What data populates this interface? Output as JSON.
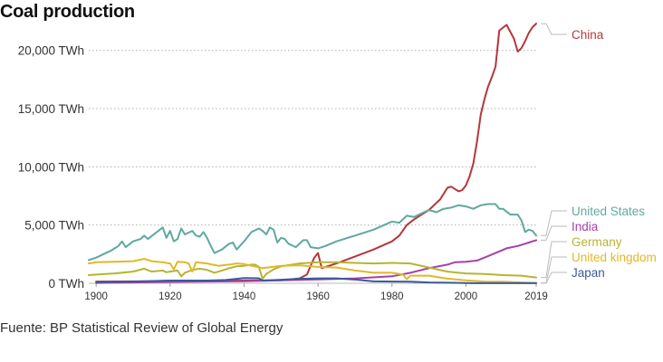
{
  "header": {
    "title": "Coal production"
  },
  "footer": {
    "source": "Fuente: BP Statistical Review of Global Energy"
  },
  "chart_data": {
    "type": "line",
    "title": "Coal production",
    "xlabel": "",
    "ylabel": "",
    "xlim": [
      1898,
      2019
    ],
    "ylim": [
      0,
      22000
    ],
    "grid": true,
    "x_ticks": [
      {
        "value": 1900,
        "label": "1900"
      },
      {
        "value": 1920,
        "label": "1920"
      },
      {
        "value": 1940,
        "label": "1940"
      },
      {
        "value": 1960,
        "label": "1960"
      },
      {
        "value": 1980,
        "label": "1980"
      },
      {
        "value": 2000,
        "label": "2000"
      },
      {
        "value": 2019,
        "label": "2019"
      }
    ],
    "y_ticks": [
      {
        "value": 0,
        "label": "0 TWh"
      },
      {
        "value": 5000,
        "label": "5,000 TWh"
      },
      {
        "value": 10000,
        "label": "10,000 TWh"
      },
      {
        "value": 15000,
        "label": "15,000 TWh"
      },
      {
        "value": 20000,
        "label": "20,000 TWh"
      }
    ],
    "series": [
      {
        "name": "China",
        "color": "#b5363b",
        "points": [
          [
            1900,
            150
          ],
          [
            1920,
            170
          ],
          [
            1940,
            230
          ],
          [
            1950,
            260
          ],
          [
            1955,
            420
          ],
          [
            1957,
            750
          ],
          [
            1958,
            1500
          ],
          [
            1959,
            2200
          ],
          [
            1960,
            2600
          ],
          [
            1961,
            1300
          ],
          [
            1962,
            1400
          ],
          [
            1965,
            1700
          ],
          [
            1970,
            2300
          ],
          [
            1975,
            2900
          ],
          [
            1980,
            3600
          ],
          [
            1982,
            4100
          ],
          [
            1984,
            5000
          ],
          [
            1986,
            5500
          ],
          [
            1990,
            6300
          ],
          [
            1993,
            7200
          ],
          [
            1995,
            8200
          ],
          [
            1996,
            8300
          ],
          [
            1997,
            8100
          ],
          [
            1998,
            7900
          ],
          [
            1999,
            8000
          ],
          [
            2000,
            8400
          ],
          [
            2001,
            9200
          ],
          [
            2002,
            10300
          ],
          [
            2003,
            12200
          ],
          [
            2004,
            14500
          ],
          [
            2005,
            15800
          ],
          [
            2006,
            16900
          ],
          [
            2007,
            17700
          ],
          [
            2008,
            18600
          ],
          [
            2009,
            21700
          ],
          [
            2011,
            22200
          ],
          [
            2013,
            21000
          ],
          [
            2014,
            19900
          ],
          [
            2015,
            20200
          ],
          [
            2016,
            20800
          ],
          [
            2017,
            21500
          ],
          [
            2018,
            22000
          ],
          [
            2019,
            22300
          ]
        ]
      },
      {
        "name": "United States",
        "color": "#5fa8a0",
        "points": [
          [
            1898,
            2000
          ],
          [
            1900,
            2200
          ],
          [
            1902,
            2500
          ],
          [
            1904,
            2800
          ],
          [
            1905,
            3000
          ],
          [
            1906,
            3200
          ],
          [
            1907,
            3600
          ],
          [
            1908,
            3100
          ],
          [
            1910,
            3600
          ],
          [
            1912,
            3800
          ],
          [
            1913,
            4100
          ],
          [
            1914,
            3800
          ],
          [
            1916,
            4300
          ],
          [
            1918,
            4800
          ],
          [
            1919,
            3900
          ],
          [
            1920,
            4500
          ],
          [
            1921,
            3600
          ],
          [
            1922,
            3800
          ],
          [
            1923,
            4700
          ],
          [
            1924,
            4200
          ],
          [
            1926,
            4500
          ],
          [
            1927,
            4100
          ],
          [
            1928,
            4000
          ],
          [
            1929,
            4400
          ],
          [
            1930,
            3900
          ],
          [
            1931,
            3200
          ],
          [
            1932,
            2600
          ],
          [
            1934,
            2900
          ],
          [
            1936,
            3400
          ],
          [
            1937,
            3500
          ],
          [
            1938,
            2900
          ],
          [
            1940,
            3600
          ],
          [
            1942,
            4400
          ],
          [
            1944,
            4700
          ],
          [
            1945,
            4500
          ],
          [
            1946,
            4200
          ],
          [
            1947,
            4800
          ],
          [
            1948,
            4600
          ],
          [
            1949,
            3500
          ],
          [
            1950,
            3900
          ],
          [
            1951,
            3800
          ],
          [
            1952,
            3400
          ],
          [
            1954,
            3100
          ],
          [
            1956,
            3700
          ],
          [
            1957,
            3700
          ],
          [
            1958,
            3100
          ],
          [
            1960,
            3000
          ],
          [
            1962,
            3200
          ],
          [
            1965,
            3600
          ],
          [
            1970,
            4100
          ],
          [
            1975,
            4600
          ],
          [
            1980,
            5300
          ],
          [
            1982,
            5200
          ],
          [
            1984,
            5800
          ],
          [
            1986,
            5700
          ],
          [
            1988,
            6000
          ],
          [
            1990,
            6300
          ],
          [
            1992,
            6100
          ],
          [
            1994,
            6400
          ],
          [
            1996,
            6500
          ],
          [
            1998,
            6700
          ],
          [
            2000,
            6600
          ],
          [
            2002,
            6400
          ],
          [
            2004,
            6700
          ],
          [
            2006,
            6800
          ],
          [
            2008,
            6800
          ],
          [
            2009,
            6400
          ],
          [
            2010,
            6400
          ],
          [
            2012,
            5900
          ],
          [
            2014,
            5900
          ],
          [
            2015,
            5400
          ],
          [
            2016,
            4400
          ],
          [
            2017,
            4600
          ],
          [
            2018,
            4500
          ],
          [
            2019,
            4100
          ]
        ]
      },
      {
        "name": "India",
        "color": "#a640a9",
        "points": [
          [
            1900,
            30
          ],
          [
            1920,
            120
          ],
          [
            1940,
            170
          ],
          [
            1960,
            330
          ],
          [
            1970,
            420
          ],
          [
            1980,
            600
          ],
          [
            1985,
            900
          ],
          [
            1990,
            1300
          ],
          [
            1995,
            1600
          ],
          [
            1997,
            1800
          ],
          [
            2000,
            1850
          ],
          [
            2003,
            1950
          ],
          [
            2005,
            2200
          ],
          [
            2008,
            2600
          ],
          [
            2011,
            3000
          ],
          [
            2014,
            3200
          ],
          [
            2016,
            3400
          ],
          [
            2017,
            3500
          ],
          [
            2018,
            3600
          ],
          [
            2019,
            3700
          ]
        ]
      },
      {
        "name": "Germany",
        "color": "#b7b433",
        "points": [
          [
            1898,
            700
          ],
          [
            1900,
            750
          ],
          [
            1905,
            850
          ],
          [
            1910,
            1000
          ],
          [
            1913,
            1250
          ],
          [
            1915,
            1000
          ],
          [
            1918,
            1100
          ],
          [
            1919,
            950
          ],
          [
            1920,
            1000
          ],
          [
            1922,
            1100
          ],
          [
            1923,
            600
          ],
          [
            1924,
            900
          ],
          [
            1926,
            1150
          ],
          [
            1928,
            1250
          ],
          [
            1930,
            1150
          ],
          [
            1932,
            900
          ],
          [
            1934,
            1100
          ],
          [
            1936,
            1300
          ],
          [
            1938,
            1450
          ],
          [
            1940,
            1500
          ],
          [
            1942,
            1600
          ],
          [
            1943,
            1600
          ],
          [
            1944,
            1400
          ],
          [
            1945,
            400
          ],
          [
            1946,
            800
          ],
          [
            1948,
            1200
          ],
          [
            1950,
            1450
          ],
          [
            1955,
            1700
          ],
          [
            1960,
            1800
          ],
          [
            1965,
            1800
          ],
          [
            1970,
            1750
          ],
          [
            1975,
            1700
          ],
          [
            1980,
            1750
          ],
          [
            1985,
            1700
          ],
          [
            1990,
            1350
          ],
          [
            1995,
            1000
          ],
          [
            2000,
            850
          ],
          [
            2005,
            800
          ],
          [
            2010,
            700
          ],
          [
            2015,
            650
          ],
          [
            2019,
            500
          ]
        ]
      },
      {
        "name": "United kingdom",
        "color": "#e1b829",
        "points": [
          [
            1898,
            1700
          ],
          [
            1900,
            1800
          ],
          [
            1905,
            1850
          ],
          [
            1910,
            1900
          ],
          [
            1913,
            2100
          ],
          [
            1915,
            1900
          ],
          [
            1918,
            1800
          ],
          [
            1920,
            1700
          ],
          [
            1921,
            1200
          ],
          [
            1922,
            1850
          ],
          [
            1924,
            1800
          ],
          [
            1925,
            1700
          ],
          [
            1926,
            1000
          ],
          [
            1927,
            1800
          ],
          [
            1930,
            1700
          ],
          [
            1933,
            1500
          ],
          [
            1936,
            1600
          ],
          [
            1938,
            1700
          ],
          [
            1940,
            1650
          ],
          [
            1945,
            1300
          ],
          [
            1950,
            1500
          ],
          [
            1955,
            1550
          ],
          [
            1960,
            1400
          ],
          [
            1965,
            1350
          ],
          [
            1970,
            1100
          ],
          [
            1975,
            900
          ],
          [
            1980,
            900
          ],
          [
            1983,
            750
          ],
          [
            1984,
            350
          ],
          [
            1985,
            650
          ],
          [
            1990,
            650
          ],
          [
            1993,
            500
          ],
          [
            1995,
            400
          ],
          [
            2000,
            250
          ],
          [
            2005,
            150
          ],
          [
            2010,
            130
          ],
          [
            2015,
            70
          ],
          [
            2019,
            30
          ]
        ]
      },
      {
        "name": "Japan",
        "color": "#3a5a99",
        "points": [
          [
            1900,
            100
          ],
          [
            1910,
            150
          ],
          [
            1920,
            230
          ],
          [
            1930,
            230
          ],
          [
            1935,
            280
          ],
          [
            1940,
            450
          ],
          [
            1944,
            430
          ],
          [
            1945,
            230
          ],
          [
            1950,
            300
          ],
          [
            1955,
            380
          ],
          [
            1960,
            420
          ],
          [
            1965,
            420
          ],
          [
            1970,
            320
          ],
          [
            1975,
            160
          ],
          [
            1980,
            150
          ],
          [
            1985,
            130
          ],
          [
            1990,
            70
          ],
          [
            1995,
            50
          ],
          [
            2000,
            20
          ],
          [
            2002,
            5
          ],
          [
            2019,
            5
          ]
        ]
      }
    ],
    "series_labels": [
      {
        "text": "China",
        "color": "#b5363b"
      },
      {
        "text": "United States",
        "color": "#5fa8a0"
      },
      {
        "text": "India",
        "color": "#a640a9"
      },
      {
        "text": "Germany",
        "color": "#b7b433"
      },
      {
        "text": "United kingdom",
        "color": "#e1b829"
      },
      {
        "text": "Japan",
        "color": "#3a5a99"
      }
    ]
  }
}
